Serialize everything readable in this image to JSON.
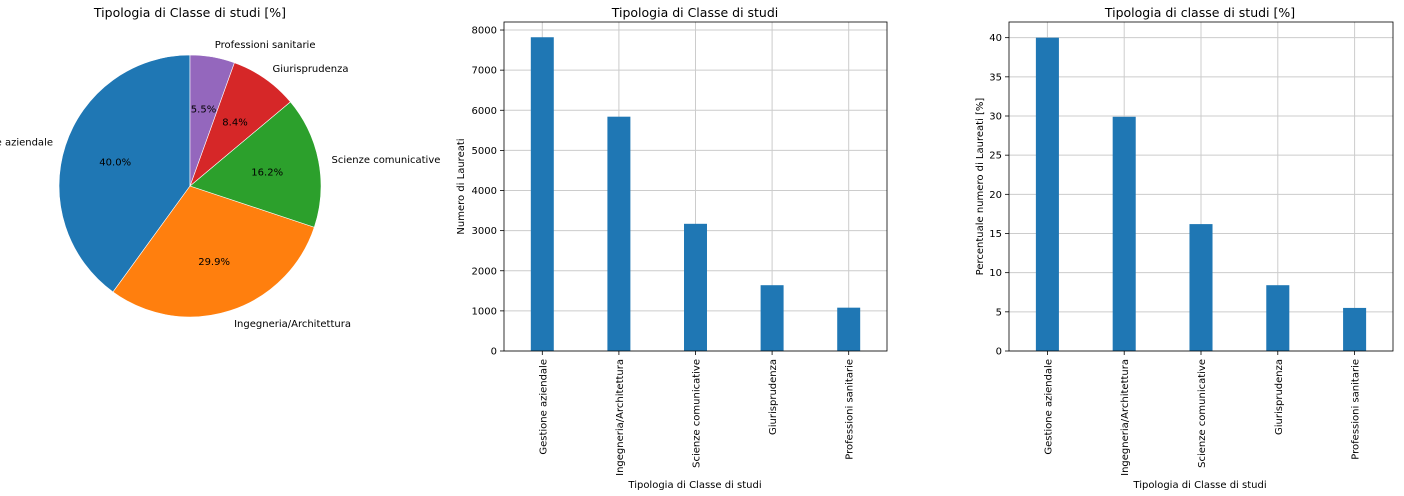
{
  "chart_data": [
    {
      "type": "pie",
      "title": "Tipologia di Classe di studi [%]",
      "start_angle_deg": 90,
      "counterclockwise": true,
      "slices": [
        {
          "label": "Gestione aziendale",
          "value": 40.0,
          "pct_label": "40.0%",
          "color": "#1f77b4"
        },
        {
          "label": "Ingegneria/Architettura",
          "value": 29.9,
          "pct_label": "29.9%",
          "color": "#ff7f0e"
        },
        {
          "label": "Scienze comunicative",
          "value": 16.2,
          "pct_label": "16.2%",
          "color": "#2ca02c"
        },
        {
          "label": "Giurisprudenza",
          "value": 8.4,
          "pct_label": "8.4%",
          "color": "#d62728"
        },
        {
          "label": "Professioni sanitarie",
          "value": 5.5,
          "pct_label": "5.5%",
          "color": "#9467bd"
        }
      ]
    },
    {
      "type": "bar",
      "title": "Tipologia di Classe di studi",
      "xlabel": "Tipologia di Classe di studi",
      "ylabel": "Numero di Laureati",
      "categories": [
        "Gestione aziendale",
        "Ingegneria/Architettura",
        "Scienze comunicative",
        "Giurisprudenza",
        "Professioni sanitarie"
      ],
      "values": [
        7820,
        5840,
        3170,
        1640,
        1080
      ],
      "ylim": [
        0,
        8200
      ],
      "yticks": [
        0,
        1000,
        2000,
        3000,
        4000,
        5000,
        6000,
        7000,
        8000
      ],
      "bar_color": "#1f77b4",
      "grid": true
    },
    {
      "type": "bar",
      "title": "Tipologia di classe di studi [%]",
      "xlabel": "Tipologia di Classe di studi",
      "ylabel": "Percentuale numero di Laureati [%]",
      "categories": [
        "Gestione aziendale",
        "Ingegneria/Architettura",
        "Scienze comunicative",
        "Giurisprudenza",
        "Professioni sanitarie"
      ],
      "values": [
        40.0,
        29.9,
        16.2,
        8.4,
        5.5
      ],
      "ylim": [
        0,
        42
      ],
      "yticks": [
        0,
        5,
        10,
        15,
        20,
        25,
        30,
        35,
        40
      ],
      "bar_color": "#1f77b4",
      "grid": true
    }
  ]
}
